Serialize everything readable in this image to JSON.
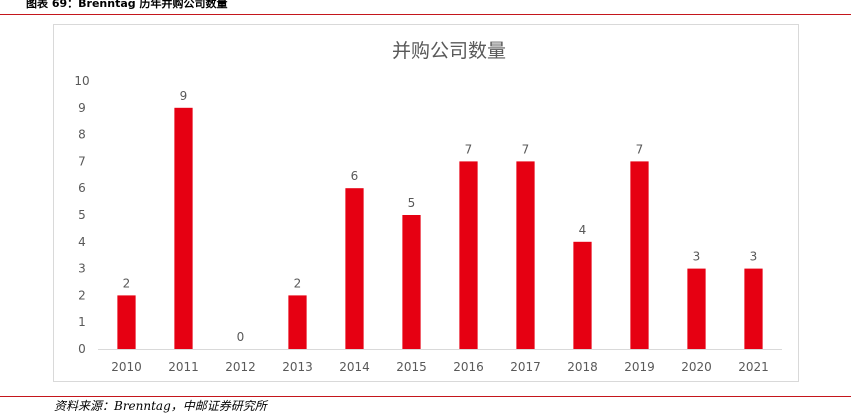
{
  "report": {
    "header_title": "图表 69：Brenntag 历年并购公司数量",
    "source_note": "资料来源：Brenntag，中邮证券研究所"
  },
  "colors": {
    "bar": "#e60012",
    "accent_rule": "#c4161c",
    "axis_text": "#595959",
    "title_text": "#595959",
    "axis_line": "#d9d9d9"
  },
  "chart_data": {
    "type": "bar",
    "title": "并购公司数量",
    "xlabel": "",
    "ylabel": "",
    "categories": [
      "2010",
      "2011",
      "2012",
      "2013",
      "2014",
      "2015",
      "2016",
      "2017",
      "2018",
      "2019",
      "2020",
      "2021"
    ],
    "values": [
      2,
      9,
      0,
      2,
      6,
      5,
      7,
      7,
      4,
      7,
      3,
      3
    ],
    "ylim": [
      0,
      10
    ],
    "yticks": [
      0,
      1,
      2,
      3,
      4,
      5,
      6,
      7,
      8,
      9,
      10
    ],
    "grid": false,
    "legend": "none",
    "data_labels": true
  }
}
